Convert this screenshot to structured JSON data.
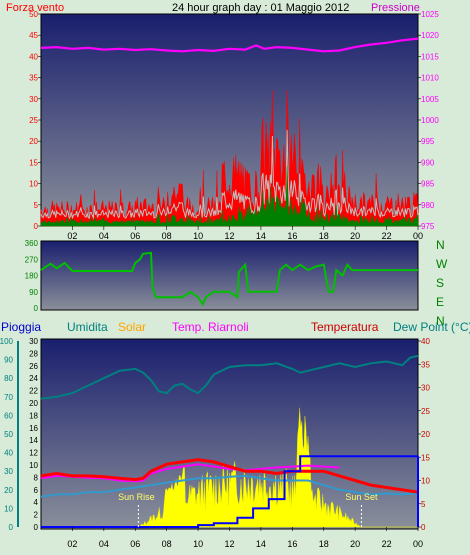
{
  "header": {
    "left_label": "Forza vento",
    "title": "24 hour graph day : 01 Maggio 2012",
    "right_label": "Pressione"
  },
  "colors": {
    "bg": "#d8ebd8",
    "wind_red": "#ff0000",
    "wind_green": "#008000",
    "wind_gray": "#c0c0c0",
    "pressure": "#ff00ff",
    "direction": "#00c000",
    "humidity": "#008080",
    "solar": "#ffff00",
    "temp_int": "#ff00ff",
    "temp": "#ff0000",
    "dewpoint": "#3399cc",
    "rain": "#0000ff",
    "rain_axis": "#008080",
    "humidity_axis": "#008080",
    "dewpoint_axis": "#008080",
    "temp_axis": "#cc0000",
    "solar_axis": "#ffa500"
  },
  "x_ticks": [
    "02",
    "04",
    "06",
    "08",
    "10",
    "12",
    "14",
    "16",
    "18",
    "20",
    "22",
    "00"
  ],
  "panel1": {
    "wind_axis": [
      0,
      5,
      10,
      15,
      20,
      25,
      30,
      35,
      40,
      45,
      50
    ],
    "pressure_axis": [
      975,
      980,
      985,
      990,
      995,
      1000,
      1005,
      1010,
      1015,
      1020,
      1025
    ],
    "pressure_series": [
      [
        0,
        1017
      ],
      [
        1,
        1017.2
      ],
      [
        2,
        1016.8
      ],
      [
        3,
        1017
      ],
      [
        4,
        1016.6
      ],
      [
        5,
        1016.8
      ],
      [
        6,
        1016.5
      ],
      [
        7,
        1016.7
      ],
      [
        8,
        1016.4
      ],
      [
        9,
        1016.2
      ],
      [
        10,
        1016.5
      ],
      [
        11,
        1016.3
      ],
      [
        12,
        1016.8
      ],
      [
        13,
        1016.6
      ],
      [
        13.7,
        1017.6
      ],
      [
        14.2,
        1016.8
      ],
      [
        15,
        1017.2
      ],
      [
        16,
        1017
      ],
      [
        17,
        1016.6
      ],
      [
        18,
        1016.2
      ],
      [
        19,
        1016.4
      ],
      [
        20,
        1017.2
      ],
      [
        21,
        1017.8
      ],
      [
        22,
        1018.2
      ],
      [
        23,
        1018.8
      ],
      [
        24,
        1019.2
      ]
    ]
  },
  "panel2": {
    "dir_axis": [
      0,
      90,
      180,
      270,
      360
    ],
    "compass": [
      "N",
      "W",
      "S",
      "E",
      "N"
    ],
    "direction_series": [
      [
        0,
        210
      ],
      [
        0.6,
        245
      ],
      [
        1,
        220
      ],
      [
        1.5,
        250
      ],
      [
        2,
        205
      ],
      [
        3,
        205
      ],
      [
        4,
        205
      ],
      [
        5,
        205
      ],
      [
        5.8,
        205
      ],
      [
        6,
        250
      ],
      [
        6.3,
        270
      ],
      [
        6.5,
        300
      ],
      [
        7,
        305
      ],
      [
        7.1,
        120
      ],
      [
        7.3,
        60
      ],
      [
        8,
        60
      ],
      [
        9,
        60
      ],
      [
        9.5,
        90
      ],
      [
        10,
        60
      ],
      [
        10.3,
        20
      ],
      [
        10.5,
        60
      ],
      [
        11,
        90
      ],
      [
        12,
        90
      ],
      [
        12.5,
        60
      ],
      [
        12.6,
        200
      ],
      [
        13,
        240
      ],
      [
        13.2,
        90
      ],
      [
        14,
        90
      ],
      [
        14.5,
        90
      ],
      [
        15,
        90
      ],
      [
        15.2,
        210
      ],
      [
        15.6,
        240
      ],
      [
        16,
        210
      ],
      [
        16.5,
        240
      ],
      [
        17,
        210
      ],
      [
        17.5,
        230
      ],
      [
        18,
        240
      ],
      [
        18.3,
        90
      ],
      [
        18.6,
        90
      ],
      [
        18.8,
        210
      ],
      [
        19.2,
        180
      ],
      [
        19.5,
        240
      ],
      [
        19.8,
        210
      ],
      [
        20,
        210
      ],
      [
        21,
        210
      ],
      [
        22,
        210
      ],
      [
        23,
        210
      ],
      [
        24,
        210
      ]
    ]
  },
  "panel3": {
    "labels": {
      "rain": "Pioggia",
      "humidity": "Umidita",
      "solar": "Solar",
      "temp_int": "Temp. Riarnoli",
      "temp": "Temperatura",
      "dewpoint": "Dew Point (°C)",
      "sunrise": "Sun Rise",
      "sunset": "Sun Set"
    },
    "rain_axis": [
      0,
      10,
      20,
      30,
      40,
      50,
      60,
      70,
      80,
      90,
      100
    ],
    "humidity_axis": [
      0,
      2,
      4,
      6,
      8,
      10,
      12,
      14,
      16,
      18,
      20,
      22,
      24,
      26,
      28,
      30
    ],
    "temp_axis": [
      0,
      5,
      10,
      15,
      20,
      25,
      30,
      35,
      40
    ],
    "humidity_series": [
      [
        0,
        69
      ],
      [
        1,
        70
      ],
      [
        2,
        72
      ],
      [
        3,
        76
      ],
      [
        4,
        80
      ],
      [
        5,
        84
      ],
      [
        6,
        85
      ],
      [
        6.5,
        83
      ],
      [
        7,
        79
      ],
      [
        7.5,
        73
      ],
      [
        8,
        72
      ],
      [
        8.5,
        76
      ],
      [
        9,
        77
      ],
      [
        9.5,
        74
      ],
      [
        10,
        72
      ],
      [
        10.5,
        76
      ],
      [
        11,
        82
      ],
      [
        12,
        86
      ],
      [
        13,
        87
      ],
      [
        14,
        87
      ],
      [
        15,
        88
      ],
      [
        16,
        85
      ],
      [
        16.5,
        83
      ],
      [
        17,
        84
      ],
      [
        18,
        86
      ],
      [
        19,
        88
      ],
      [
        20,
        86
      ],
      [
        21,
        88
      ],
      [
        22,
        89
      ],
      [
        23,
        87
      ],
      [
        23.5,
        91
      ],
      [
        24,
        92
      ]
    ],
    "temp_series": [
      [
        0,
        11
      ],
      [
        1,
        11.5
      ],
      [
        2,
        11
      ],
      [
        3,
        11
      ],
      [
        4,
        10.8
      ],
      [
        5,
        10.5
      ],
      [
        6,
        10.2
      ],
      [
        6.5,
        10.5
      ],
      [
        7,
        12
      ],
      [
        8,
        13.5
      ],
      [
        9,
        14
      ],
      [
        10,
        14.5
      ],
      [
        11,
        14
      ],
      [
        12,
        13
      ],
      [
        13,
        12
      ],
      [
        14,
        12
      ],
      [
        15,
        11.5
      ],
      [
        16,
        12
      ],
      [
        17,
        12
      ],
      [
        18,
        12
      ],
      [
        19,
        11
      ],
      [
        20,
        10
      ],
      [
        21,
        9
      ],
      [
        22,
        8.5
      ],
      [
        23,
        8
      ],
      [
        24,
        7.5
      ]
    ],
    "temp_int_series": [
      [
        0,
        10.5
      ],
      [
        1,
        11
      ],
      [
        2,
        10.8
      ],
      [
        3,
        10.6
      ],
      [
        4,
        10.5
      ],
      [
        5,
        10
      ],
      [
        6,
        9.8
      ],
      [
        6.5,
        10
      ],
      [
        7,
        11.5
      ],
      [
        8,
        12.5
      ],
      [
        9,
        13
      ],
      [
        10,
        13.5
      ],
      [
        11,
        13
      ],
      [
        12,
        12.5
      ],
      [
        13,
        12.2
      ],
      [
        14,
        12.5
      ],
      [
        15,
        12.8
      ],
      [
        16,
        13
      ],
      [
        17,
        13.2
      ],
      [
        18,
        13
      ],
      [
        19,
        12.8
      ]
    ],
    "dewpoint_series": [
      [
        0,
        6.5
      ],
      [
        1,
        7
      ],
      [
        2,
        7
      ],
      [
        3,
        7.5
      ],
      [
        4,
        7.5
      ],
      [
        5,
        8
      ],
      [
        6,
        8.5
      ],
      [
        7,
        9
      ],
      [
        8,
        9.5
      ],
      [
        9,
        10
      ],
      [
        10,
        10.5
      ],
      [
        11,
        10.5
      ],
      [
        12,
        10.8
      ],
      [
        13,
        11
      ],
      [
        14,
        10.5
      ],
      [
        15,
        10
      ],
      [
        16,
        10
      ],
      [
        17,
        10
      ],
      [
        18,
        9
      ],
      [
        19,
        8
      ],
      [
        20,
        7.5
      ],
      [
        21,
        7
      ],
      [
        22,
        7.2
      ],
      [
        23,
        7
      ],
      [
        24,
        7.2
      ]
    ],
    "rain_series": [
      [
        0,
        0
      ],
      [
        8,
        0
      ],
      [
        10,
        1
      ],
      [
        11,
        2
      ],
      [
        12.5,
        5
      ],
      [
        13.5,
        10
      ],
      [
        14.5,
        15
      ],
      [
        15.5,
        30
      ],
      [
        16.5,
        38
      ],
      [
        24,
        38
      ]
    ],
    "sunrise_hour": 6.2,
    "sunset_hour": 20.4
  }
}
